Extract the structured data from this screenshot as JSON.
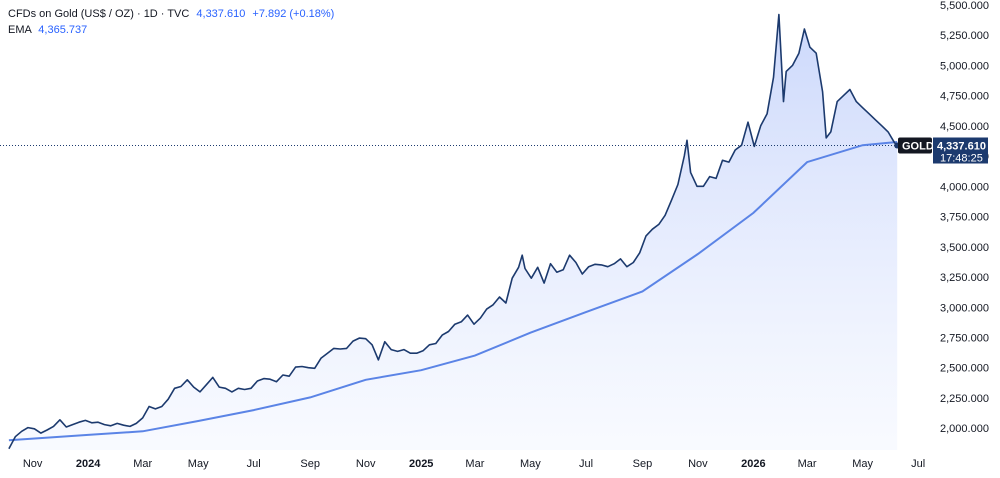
{
  "legend": {
    "symbol": "CFDs on Gold (US$ / OZ) · 1D · TVC",
    "price": "4,337.610",
    "change": "+7.892 (+0.18%)",
    "ema_label": "EMA",
    "ema_value": "4,365.737"
  },
  "price_tag": {
    "ticker": "GOLD",
    "price": "4,337.610",
    "countdown": "17:48:25"
  },
  "colors": {
    "price_line": "#1c3a6e",
    "ema_line": "#5b84e6",
    "area_top": "#c9d6fb",
    "area_bottom": "#f4f7ff",
    "tag_dark": "#1c3a6e",
    "ticker_box": "#131722"
  },
  "chart_data": {
    "type": "area",
    "yticks": [
      "2,000.000",
      "2,250.000",
      "2,500.000",
      "2,750.000",
      "3,000.000",
      "3,250.000",
      "3,500.000",
      "3,750.000",
      "4,000.000",
      "4,250.000",
      "4,500.000",
      "4,750.000",
      "5,000.000",
      "5,250.000",
      "5,500.000"
    ],
    "ytick_values": [
      2000,
      2250,
      2500,
      2750,
      3000,
      3250,
      3500,
      3750,
      4000,
      4250,
      4500,
      4750,
      5000,
      5250,
      5500
    ],
    "xticks": [
      "Nov",
      "2024",
      "Mar",
      "May",
      "Jul",
      "Sep",
      "Nov",
      "2025",
      "Mar",
      "May",
      "Jul",
      "Sep",
      "Nov",
      "2026",
      "Mar",
      "May",
      "Jul"
    ],
    "xtick_bold": [
      false,
      true,
      false,
      false,
      false,
      false,
      false,
      true,
      false,
      false,
      false,
      false,
      false,
      true,
      false,
      false,
      false
    ],
    "xtick_dates": [
      "2023-11-01",
      "2024-01-01",
      "2024-03-01",
      "2024-05-01",
      "2024-07-01",
      "2024-09-01",
      "2024-11-01",
      "2025-01-01",
      "2025-03-01",
      "2025-05-01",
      "2025-07-01",
      "2025-09-01",
      "2025-11-01",
      "2026-01-01",
      "2026-03-01",
      "2026-05-01",
      "2026-07-01"
    ],
    "ylim": [
      1820,
      5540
    ],
    "xlim": [
      "2023-10-05",
      "2026-07-14"
    ],
    "series": [
      {
        "name": "CFDs on Gold (US$ / OZ)",
        "points": [
          [
            "2023-10-06",
            1830
          ],
          [
            "2023-10-13",
            1930
          ],
          [
            "2023-10-20",
            1975
          ],
          [
            "2023-10-27",
            2005
          ],
          [
            "2023-11-03",
            1995
          ],
          [
            "2023-11-10",
            1960
          ],
          [
            "2023-11-17",
            1985
          ],
          [
            "2023-11-24",
            2015
          ],
          [
            "2023-12-01",
            2070
          ],
          [
            "2023-12-08",
            2010
          ],
          [
            "2023-12-15",
            2030
          ],
          [
            "2023-12-22",
            2050
          ],
          [
            "2023-12-29",
            2065
          ],
          [
            "2024-01-05",
            2045
          ],
          [
            "2024-01-12",
            2050
          ],
          [
            "2024-01-19",
            2030
          ],
          [
            "2024-01-26",
            2020
          ],
          [
            "2024-02-02",
            2040
          ],
          [
            "2024-02-09",
            2025
          ],
          [
            "2024-02-16",
            2015
          ],
          [
            "2024-02-23",
            2040
          ],
          [
            "2024-03-01",
            2085
          ],
          [
            "2024-03-08",
            2180
          ],
          [
            "2024-03-15",
            2160
          ],
          [
            "2024-03-22",
            2180
          ],
          [
            "2024-03-29",
            2240
          ],
          [
            "2024-04-05",
            2330
          ],
          [
            "2024-04-12",
            2345
          ],
          [
            "2024-04-19",
            2400
          ],
          [
            "2024-04-26",
            2340
          ],
          [
            "2024-05-03",
            2300
          ],
          [
            "2024-05-10",
            2360
          ],
          [
            "2024-05-17",
            2420
          ],
          [
            "2024-05-24",
            2340
          ],
          [
            "2024-05-31",
            2330
          ],
          [
            "2024-06-07",
            2300
          ],
          [
            "2024-06-14",
            2330
          ],
          [
            "2024-06-21",
            2320
          ],
          [
            "2024-06-28",
            2330
          ],
          [
            "2024-07-05",
            2390
          ],
          [
            "2024-07-12",
            2410
          ],
          [
            "2024-07-19",
            2405
          ],
          [
            "2024-07-26",
            2385
          ],
          [
            "2024-08-02",
            2440
          ],
          [
            "2024-08-09",
            2430
          ],
          [
            "2024-08-16",
            2505
          ],
          [
            "2024-08-23",
            2510
          ],
          [
            "2024-08-30",
            2500
          ],
          [
            "2024-09-06",
            2495
          ],
          [
            "2024-09-13",
            2580
          ],
          [
            "2024-09-20",
            2620
          ],
          [
            "2024-09-27",
            2660
          ],
          [
            "2024-10-04",
            2655
          ],
          [
            "2024-10-11",
            2660
          ],
          [
            "2024-10-18",
            2720
          ],
          [
            "2024-10-25",
            2745
          ],
          [
            "2024-11-01",
            2740
          ],
          [
            "2024-11-08",
            2690
          ],
          [
            "2024-11-15",
            2565
          ],
          [
            "2024-11-22",
            2715
          ],
          [
            "2024-11-29",
            2650
          ],
          [
            "2024-12-06",
            2635
          ],
          [
            "2024-12-13",
            2650
          ],
          [
            "2024-12-20",
            2620
          ],
          [
            "2024-12-27",
            2620
          ],
          [
            "2025-01-03",
            2640
          ],
          [
            "2025-01-10",
            2690
          ],
          [
            "2025-01-17",
            2700
          ],
          [
            "2025-01-24",
            2770
          ],
          [
            "2025-01-31",
            2800
          ],
          [
            "2025-02-07",
            2860
          ],
          [
            "2025-02-14",
            2880
          ],
          [
            "2025-02-21",
            2935
          ],
          [
            "2025-02-28",
            2860
          ],
          [
            "2025-03-07",
            2910
          ],
          [
            "2025-03-14",
            2985
          ],
          [
            "2025-03-21",
            3020
          ],
          [
            "2025-03-28",
            3085
          ],
          [
            "2025-04-04",
            3035
          ],
          [
            "2025-04-11",
            3240
          ],
          [
            "2025-04-18",
            3330
          ],
          [
            "2025-04-22",
            3430
          ],
          [
            "2025-04-25",
            3320
          ],
          [
            "2025-05-02",
            3240
          ],
          [
            "2025-05-09",
            3330
          ],
          [
            "2025-05-16",
            3200
          ],
          [
            "2025-05-23",
            3360
          ],
          [
            "2025-05-30",
            3290
          ],
          [
            "2025-06-06",
            3310
          ],
          [
            "2025-06-13",
            3430
          ],
          [
            "2025-06-20",
            3370
          ],
          [
            "2025-06-27",
            3275
          ],
          [
            "2025-07-04",
            3335
          ],
          [
            "2025-07-11",
            3355
          ],
          [
            "2025-07-18",
            3350
          ],
          [
            "2025-07-25",
            3335
          ],
          [
            "2025-08-01",
            3360
          ],
          [
            "2025-08-08",
            3400
          ],
          [
            "2025-08-15",
            3335
          ],
          [
            "2025-08-22",
            3370
          ],
          [
            "2025-08-29",
            3450
          ],
          [
            "2025-09-05",
            3590
          ],
          [
            "2025-09-12",
            3645
          ],
          [
            "2025-09-19",
            3685
          ],
          [
            "2025-09-26",
            3760
          ],
          [
            "2025-10-03",
            3885
          ],
          [
            "2025-10-10",
            4015
          ],
          [
            "2025-10-17",
            4250
          ],
          [
            "2025-10-20",
            4380
          ],
          [
            "2025-10-24",
            4115
          ],
          [
            "2025-10-31",
            4000
          ],
          [
            "2025-11-07",
            4000
          ],
          [
            "2025-11-14",
            4080
          ],
          [
            "2025-11-21",
            4065
          ],
          [
            "2025-11-28",
            4215
          ],
          [
            "2025-12-05",
            4200
          ],
          [
            "2025-12-12",
            4300
          ],
          [
            "2025-12-19",
            4340
          ],
          [
            "2025-12-26",
            4530
          ],
          [
            "2026-01-02",
            4330
          ],
          [
            "2026-01-09",
            4500
          ],
          [
            "2026-01-16",
            4600
          ],
          [
            "2026-01-23",
            4900
          ],
          [
            "2026-01-29",
            5420
          ],
          [
            "2026-02-03",
            4700
          ],
          [
            "2026-02-06",
            4950
          ],
          [
            "2026-02-13",
            5000
          ],
          [
            "2026-02-20",
            5100
          ],
          [
            "2026-02-26",
            5300
          ],
          [
            "2026-03-04",
            5150
          ],
          [
            "2026-03-11",
            5100
          ],
          [
            "2026-03-18",
            4780
          ],
          [
            "2026-03-22",
            4400
          ],
          [
            "2026-03-27",
            4450
          ],
          [
            "2026-04-03",
            4700
          ],
          [
            "2026-04-10",
            4750
          ],
          [
            "2026-04-17",
            4800
          ],
          [
            "2026-04-24",
            4700
          ],
          [
            "2026-05-01",
            4650
          ],
          [
            "2026-05-08",
            4600
          ],
          [
            "2026-05-15",
            4550
          ],
          [
            "2026-05-22",
            4500
          ],
          [
            "2026-05-29",
            4450
          ],
          [
            "2026-06-05",
            4360
          ],
          [
            "2026-06-08",
            4337.61
          ]
        ]
      },
      {
        "name": "EMA",
        "points": [
          [
            "2023-10-06",
            1900
          ],
          [
            "2024-01-01",
            1945
          ],
          [
            "2024-03-01",
            1975
          ],
          [
            "2024-05-01",
            2060
          ],
          [
            "2024-07-01",
            2150
          ],
          [
            "2024-09-01",
            2255
          ],
          [
            "2024-11-01",
            2400
          ],
          [
            "2025-01-01",
            2480
          ],
          [
            "2025-03-01",
            2600
          ],
          [
            "2025-05-01",
            2790
          ],
          [
            "2025-07-01",
            2960
          ],
          [
            "2025-09-01",
            3130
          ],
          [
            "2025-11-01",
            3440
          ],
          [
            "2026-01-01",
            3780
          ],
          [
            "2026-03-01",
            4200
          ],
          [
            "2026-05-01",
            4340
          ],
          [
            "2026-06-08",
            4365.737
          ]
        ]
      }
    ],
    "last_price": 4337.61
  }
}
